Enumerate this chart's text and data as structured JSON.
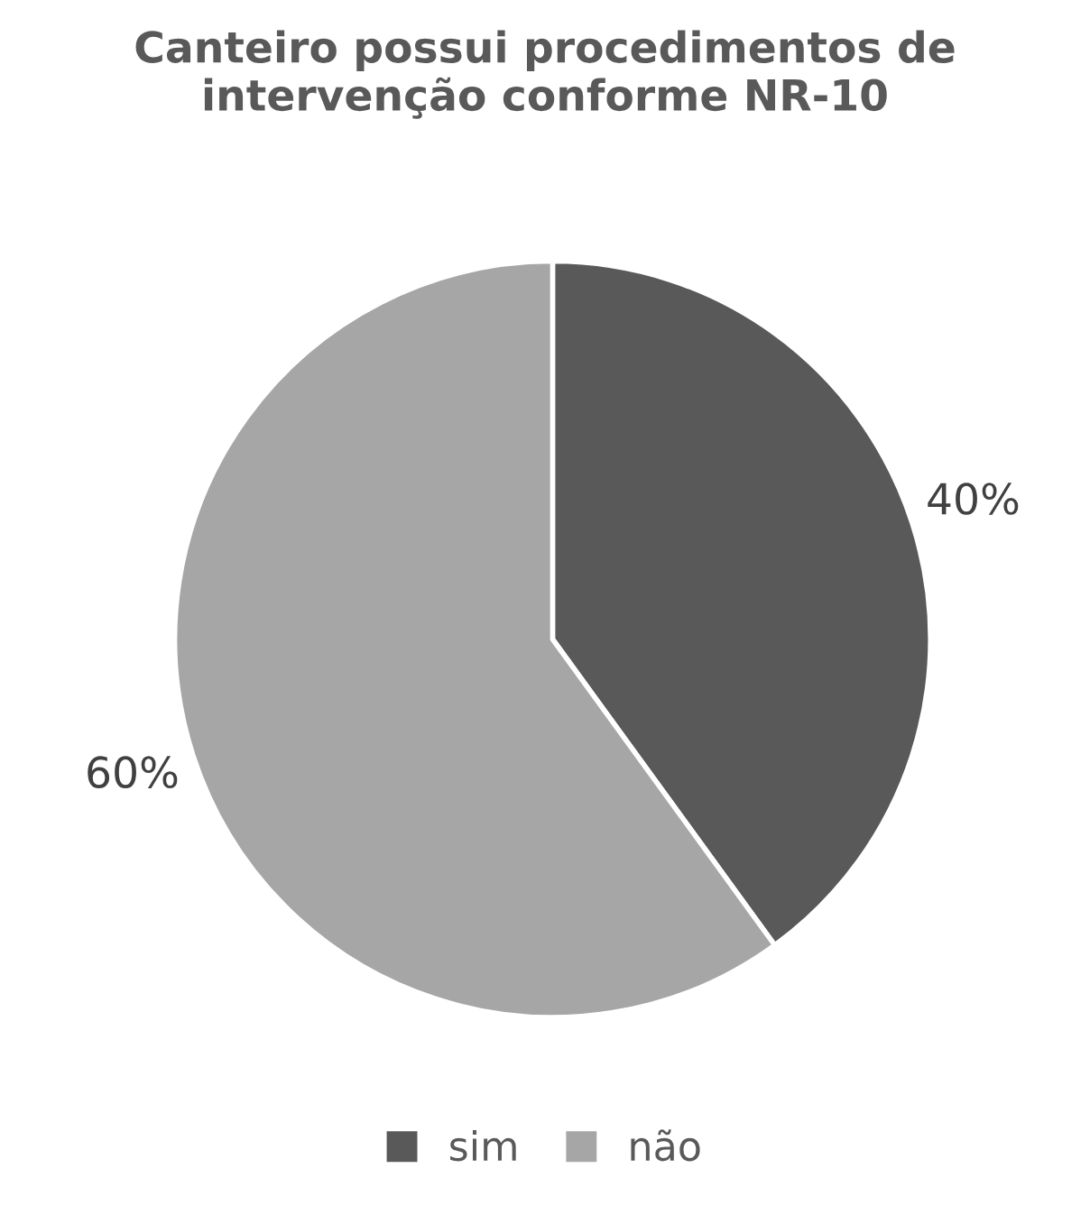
{
  "chart_data": {
    "type": "pie",
    "title": "Canteiro possui procedimentos de intervenção conforme NR-10",
    "categories": [
      "sim",
      "não"
    ],
    "values": [
      40,
      60
    ],
    "colors": [
      "#595959",
      "#a6a6a6"
    ],
    "value_labels": [
      "40%",
      "60%"
    ],
    "legend": "bottom"
  }
}
